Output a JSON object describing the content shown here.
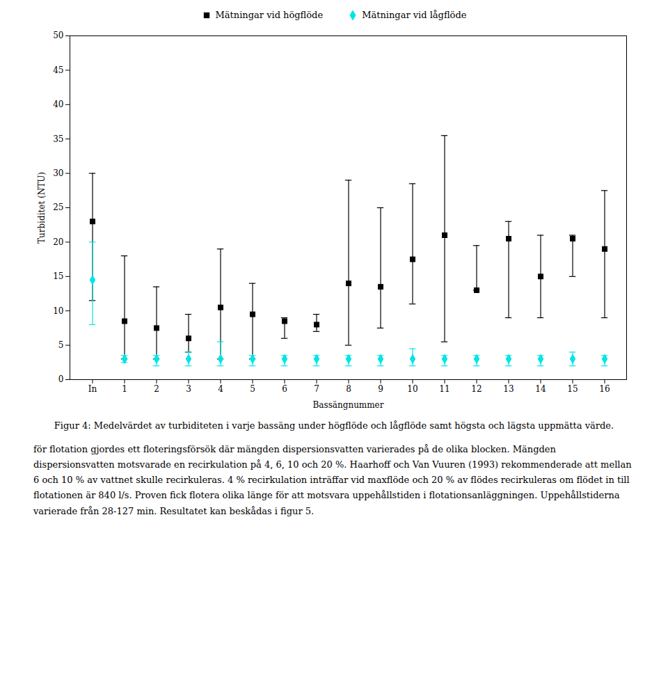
{
  "chart_data": {
    "type": "scatter",
    "xlabel": "Bassängnummer",
    "ylabel": "Turbiditet (NTU)",
    "categories": [
      "In",
      "1",
      "2",
      "3",
      "4",
      "5",
      "6",
      "7",
      "8",
      "9",
      "10",
      "11",
      "12",
      "13",
      "14",
      "15",
      "16"
    ],
    "series": [
      {
        "name": "Mätningar vid högflöde",
        "color": "#000000",
        "marker": "square",
        "values": [
          23.0,
          8.5,
          7.5,
          6.0,
          10.5,
          9.5,
          8.5,
          8.0,
          14.0,
          13.5,
          17.5,
          21.0,
          13.0,
          20.5,
          15.0,
          20.5,
          19.0
        ],
        "ymax": [
          30.0,
          18.0,
          13.5,
          9.5,
          19.0,
          14.0,
          9.0,
          9.5,
          29.0,
          25.0,
          28.5,
          35.5,
          19.5,
          23.0,
          21.0,
          21.0,
          27.5
        ],
        "ymin": [
          11.5,
          3.0,
          3.0,
          4.0,
          3.0,
          3.0,
          6.0,
          7.0,
          5.0,
          7.5,
          11.0,
          5.5,
          13.0,
          9.0,
          9.0,
          15.0,
          9.0
        ]
      },
      {
        "name": "Mätningar vid lågflöde",
        "color": "#00e5e5",
        "marker": "diamond",
        "values": [
          14.5,
          3.0,
          3.0,
          3.0,
          3.0,
          3.0,
          3.0,
          3.0,
          3.0,
          3.0,
          3.0,
          3.0,
          3.0,
          3.0,
          3.0,
          3.0,
          3.0
        ],
        "ymax": [
          20.0,
          3.5,
          3.5,
          4.0,
          5.5,
          3.5,
          3.5,
          3.5,
          3.5,
          3.5,
          4.5,
          3.5,
          3.5,
          3.5,
          3.5,
          4.0,
          3.5
        ],
        "ymin": [
          8.0,
          2.5,
          2.0,
          2.0,
          2.0,
          2.0,
          2.0,
          2.0,
          2.0,
          2.0,
          2.0,
          2.0,
          2.0,
          2.0,
          2.0,
          2.0,
          2.0
        ]
      }
    ],
    "ylim": [
      0,
      50
    ],
    "yticks": [
      0,
      5,
      10,
      15,
      20,
      25,
      30,
      35,
      40,
      45,
      50
    ],
    "grid": false,
    "legend": "top",
    "caption": "Figur 4: Medelvärdet av turbiditeten i varje bassäng under högflöde och lågflöde samt högsta och lägsta uppmätta värde.",
    "annotations": [
      "för flotation gjordes ett floteringsförsök där mängden dispersionsvatten varierades på de olika blocken. Mängden dispersionsvatten motsvarade en recirkulation på 4, 6, 10 och 20 %. Haarhoff och Van Vuuren (1993) rekommenderade att mellan 6 och 10 % av vattnet skulle recirkuleras. 4 % recirkulation inträffar vid maxflöde och 20 % av flödes recirkuleras om flödet in till flotationen är 840 l/s. Proven fick flotera olika länge för att motsvara uppehållstiden i flotationsanläggningen. Uppehållstiderna varierade från 28-127 min. Resultatet kan beskådas i figur 5."
    ]
  }
}
